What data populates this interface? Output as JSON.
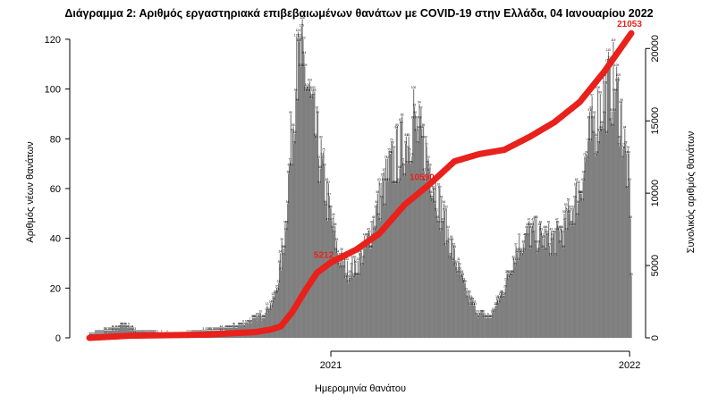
{
  "chart_data": {
    "type": "bar",
    "title": "Διάγραμμα 2: Αριθμός εργαστηριακά επιβεβαιωμένων θανάτων με COVID-19 στην Ελλάδα, 04 Ιανουαρίου 2022",
    "xlabel": "Ημερομηνία θανάτου",
    "ylabel": "Αριθμός νέων θανάτων",
    "y2label": "Συνολικός αριθμός θανάτων",
    "x_start": "2020-03-12",
    "x_end": "2022-01-03",
    "x_ticks": [
      {
        "date": "2021-01-01",
        "label": "2021"
      },
      {
        "date": "2022-01-01",
        "label": "2022"
      }
    ],
    "ylim": [
      0,
      125
    ],
    "yticks": [
      0,
      20,
      40,
      60,
      80,
      100,
      120
    ],
    "y2lim": [
      0,
      21500
    ],
    "y2ticks": [
      0,
      5000,
      10000,
      15000,
      20000
    ],
    "grid": false,
    "bar_color": "#7f7f7f",
    "line_color": "#e8211c",
    "bar_label_color": "#000000",
    "daily_profile": {
      "note_units": "new deaths per day (approx.)",
      "knots": [
        [
          "2020-03-12",
          1
        ],
        [
          "2020-04-05",
          3
        ],
        [
          "2020-04-25",
          5
        ],
        [
          "2020-05-10",
          2
        ],
        [
          "2020-07-01",
          1
        ],
        [
          "2020-08-15",
          3
        ],
        [
          "2020-09-15",
          5
        ],
        [
          "2020-10-10",
          9
        ],
        [
          "2020-10-25",
          16
        ],
        [
          "2020-11-05",
          40
        ],
        [
          "2020-11-12",
          72
        ],
        [
          "2020-11-18",
          100
        ],
        [
          "2020-11-25",
          112
        ],
        [
          "2020-12-01",
          105
        ],
        [
          "2020-12-10",
          88
        ],
        [
          "2020-12-20",
          70
        ],
        [
          "2021-01-01",
          48
        ],
        [
          "2021-01-10",
          33
        ],
        [
          "2021-01-20",
          27
        ],
        [
          "2021-02-01",
          28
        ],
        [
          "2021-02-15",
          38
        ],
        [
          "2021-03-01",
          55
        ],
        [
          "2021-03-15",
          68
        ],
        [
          "2021-04-01",
          78
        ],
        [
          "2021-04-10",
          85
        ],
        [
          "2021-04-20",
          80
        ],
        [
          "2021-05-01",
          70
        ],
        [
          "2021-05-15",
          52
        ],
        [
          "2021-06-01",
          32
        ],
        [
          "2021-06-15",
          18
        ],
        [
          "2021-07-01",
          9
        ],
        [
          "2021-07-15",
          8
        ],
        [
          "2021-08-01",
          20
        ],
        [
          "2021-08-15",
          35
        ],
        [
          "2021-09-01",
          42
        ],
        [
          "2021-09-15",
          40
        ],
        [
          "2021-10-01",
          39
        ],
        [
          "2021-10-15",
          45
        ],
        [
          "2021-11-01",
          60
        ],
        [
          "2021-11-15",
          82
        ],
        [
          "2021-12-01",
          97
        ],
        [
          "2021-12-10",
          103
        ],
        [
          "2021-12-20",
          93
        ],
        [
          "2022-01-01",
          60
        ],
        [
          "2022-01-03",
          28
        ]
      ]
    },
    "cumulative_profile": [
      [
        "2020-03-12",
        0
      ],
      [
        "2020-05-01",
        150
      ],
      [
        "2020-08-01",
        220
      ],
      [
        "2020-10-01",
        400
      ],
      [
        "2020-10-20",
        580
      ],
      [
        "2020-11-01",
        800
      ],
      [
        "2020-11-15",
        1800
      ],
      [
        "2020-12-01",
        3300
      ],
      [
        "2020-12-15",
        4500
      ],
      [
        "2021-01-01",
        5212
      ],
      [
        "2021-02-01",
        6100
      ],
      [
        "2021-03-01",
        7200
      ],
      [
        "2021-04-01",
        9200
      ],
      [
        "2021-05-01",
        10590
      ],
      [
        "2021-06-01",
        12200
      ],
      [
        "2021-07-01",
        12700
      ],
      [
        "2021-08-01",
        13000
      ],
      [
        "2021-09-01",
        13900
      ],
      [
        "2021-10-01",
        14900
      ],
      [
        "2021-11-01",
        16300
      ],
      [
        "2021-12-01",
        18400
      ],
      [
        "2022-01-03",
        21053
      ]
    ],
    "cumulative_labels": [
      {
        "date": "2021-01-01",
        "value": 5212,
        "label": "5212"
      },
      {
        "date": "2021-05-01",
        "value": 10590,
        "label": "10590"
      },
      {
        "date": "2022-01-03",
        "value": 21053,
        "label": "21053"
      }
    ],
    "peak_bar_labels": [
      {
        "date": "2020-11-20",
        "value": 121,
        "label": "121"
      },
      {
        "date": "2021-04-12",
        "value": 100,
        "label": "100"
      },
      {
        "date": "2021-12-08",
        "value": 112,
        "label": "112"
      }
    ]
  }
}
